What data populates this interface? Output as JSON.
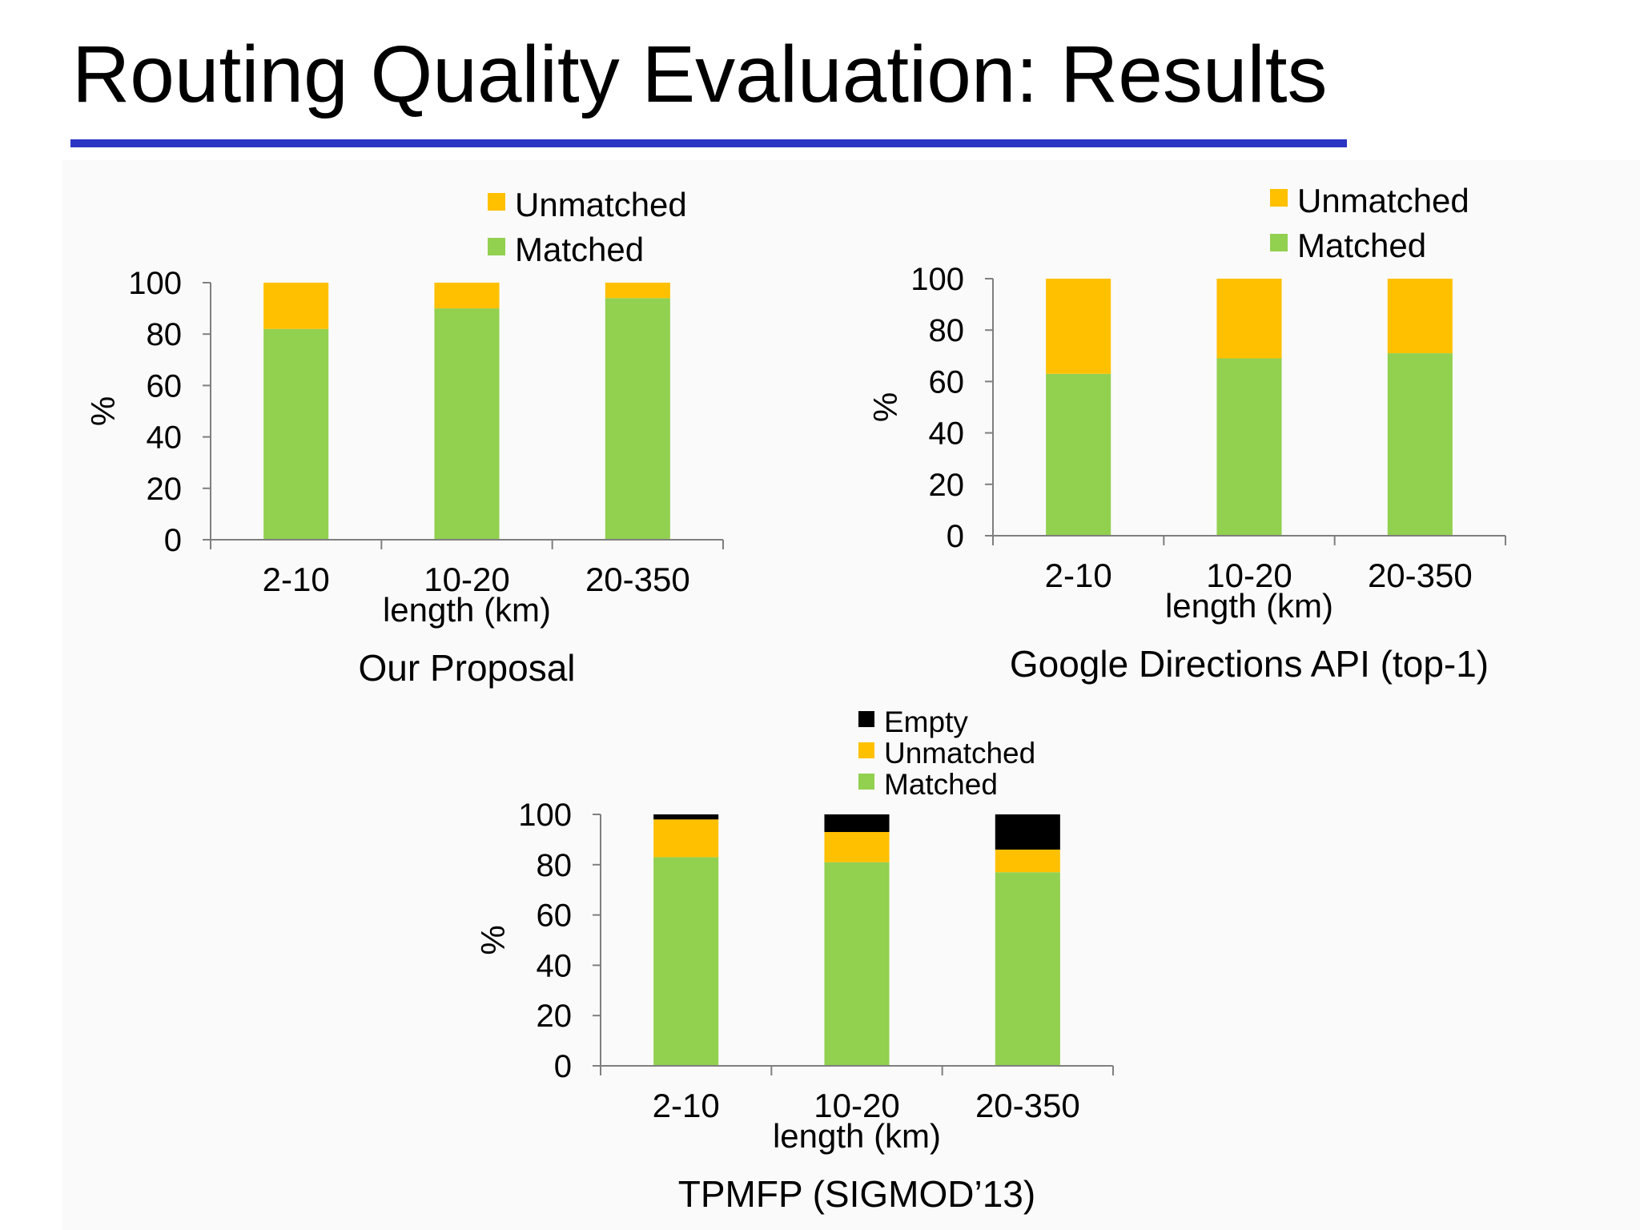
{
  "title": "Routing Quality Evaluation: Results",
  "colors": {
    "Matched": "#92d050",
    "Unmatched": "#ffc000",
    "Empty": "#000000",
    "rule": "#2b35c4"
  },
  "chart_data": [
    {
      "type": "bar",
      "stacked": true,
      "caption": "Our Proposal",
      "categories": [
        "2-10",
        "10-20",
        "20-350"
      ],
      "series": [
        {
          "name": "Matched",
          "values": [
            82,
            90,
            94
          ]
        },
        {
          "name": "Unmatched",
          "values": [
            18,
            10,
            6
          ]
        }
      ],
      "legend_order": [
        "Unmatched",
        "Matched"
      ],
      "xlabel": "length (km)",
      "ylabel": "%",
      "ylim": [
        0,
        100
      ],
      "yticks": [
        0,
        20,
        40,
        60,
        80,
        100
      ],
      "grid": false
    },
    {
      "type": "bar",
      "stacked": true,
      "caption": "Google Directions API (top-1)",
      "categories": [
        "2-10",
        "10-20",
        "20-350"
      ],
      "series": [
        {
          "name": "Matched",
          "values": [
            63,
            69,
            71
          ]
        },
        {
          "name": "Unmatched",
          "values": [
            37,
            31,
            29
          ]
        }
      ],
      "legend_order": [
        "Unmatched",
        "Matched"
      ],
      "xlabel": "length (km)",
      "ylabel": "%",
      "ylim": [
        0,
        100
      ],
      "yticks": [
        0,
        20,
        40,
        60,
        80,
        100
      ],
      "grid": false
    },
    {
      "type": "bar",
      "stacked": true,
      "caption": "TPMFP (SIGMOD’13)",
      "categories": [
        "2-10",
        "10-20",
        "20-350"
      ],
      "series": [
        {
          "name": "Matched",
          "values": [
            83,
            81,
            77
          ]
        },
        {
          "name": "Unmatched",
          "values": [
            15,
            12,
            9
          ]
        },
        {
          "name": "Empty",
          "values": [
            2,
            7,
            14
          ]
        }
      ],
      "legend_order": [
        "Empty",
        "Unmatched",
        "Matched"
      ],
      "xlabel": "length (km)",
      "ylabel": "%",
      "ylim": [
        0,
        100
      ],
      "yticks": [
        0,
        20,
        40,
        60,
        80,
        100
      ],
      "grid": false
    }
  ]
}
